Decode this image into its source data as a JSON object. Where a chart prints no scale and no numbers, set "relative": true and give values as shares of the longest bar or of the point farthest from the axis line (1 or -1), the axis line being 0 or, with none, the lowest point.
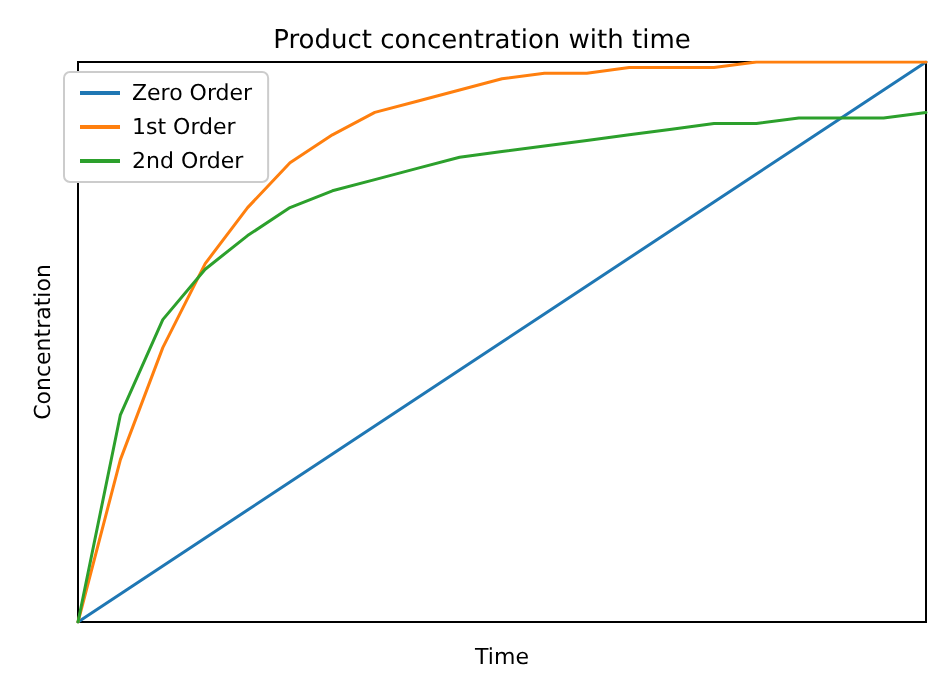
{
  "chart_data": {
    "type": "line",
    "title": "Product concentration with time",
    "xlabel": "Time",
    "ylabel": "Concentration",
    "relative": true,
    "legend": "top left",
    "grid": false,
    "marker": "none",
    "line_style": "solid",
    "categories": [
      null,
      null,
      null,
      null,
      null,
      null,
      null,
      null,
      null,
      null,
      null,
      null,
      null,
      null,
      null,
      null,
      null,
      null,
      null,
      null,
      null
    ],
    "series": [
      {
        "name": "Zero Order",
        "color": "#1f77b4",
        "values": [
          0,
          0.05,
          0.1,
          0.15,
          0.2,
          0.25,
          0.3,
          0.35,
          0.4,
          0.45,
          0.5,
          0.55,
          0.6,
          0.65,
          0.7,
          0.75,
          0.8,
          0.85,
          0.9,
          0.95,
          1
        ]
      },
      {
        "name": "1st Order",
        "color": "#ff7f0e",
        "values": [
          0,
          0.29,
          0.49,
          0.64,
          0.74,
          0.82,
          0.87,
          0.91,
          0.93,
          0.95,
          0.97,
          0.98,
          0.98,
          0.99,
          0.99,
          0.99,
          1,
          1,
          1,
          1,
          1
        ]
      },
      {
        "name": "2nd Order",
        "color": "#2ca02c",
        "values": [
          0,
          0.37,
          0.54,
          0.63,
          0.69,
          0.74,
          0.77,
          0.79,
          0.81,
          0.83,
          0.84,
          0.85,
          0.86,
          0.87,
          0.88,
          0.89,
          0.89,
          0.9,
          0.9,
          0.9,
          0.91
        ]
      }
    ]
  }
}
